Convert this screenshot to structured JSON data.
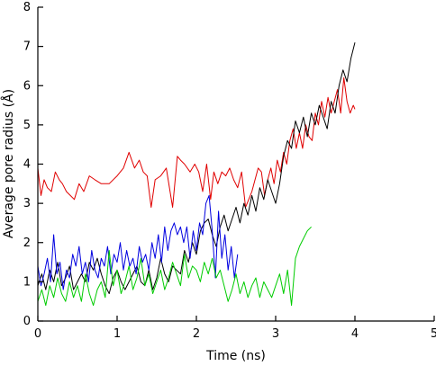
{
  "chart_data": {
    "type": "line",
    "xlabel": "Time (ns)",
    "ylabel": "Average pore radius (Å)",
    "xlim": [
      0,
      5
    ],
    "ylim": [
      0,
      8
    ],
    "x_ticks": [
      "0",
      "1",
      "2",
      "3",
      "4",
      "5"
    ],
    "y_ticks": [
      "0",
      "1",
      "2",
      "3",
      "4",
      "5",
      "6",
      "7",
      "8"
    ],
    "grid": false,
    "legend": "none",
    "series": [
      {
        "color": "#e00000",
        "x": [
          0.0,
          0.04,
          0.08,
          0.12,
          0.17,
          0.22,
          0.27,
          0.31,
          0.36,
          0.41,
          0.46,
          0.52,
          0.58,
          0.65,
          0.72,
          0.8,
          0.9,
          1.0,
          1.08,
          1.15,
          1.22,
          1.28,
          1.33,
          1.38,
          1.43,
          1.48,
          1.55,
          1.62,
          1.7,
          1.76,
          1.8,
          1.85,
          1.92,
          1.98,
          2.03,
          2.08,
          2.13,
          2.18,
          2.22,
          2.27,
          2.32,
          2.37,
          2.42,
          2.47,
          2.52,
          2.57,
          2.62,
          2.66,
          2.7,
          2.74,
          2.78,
          2.82,
          2.86,
          2.9,
          2.94,
          2.98,
          3.02,
          3.06,
          3.1,
          3.14,
          3.18,
          3.22,
          3.26,
          3.3,
          3.34,
          3.38,
          3.42,
          3.46,
          3.5,
          3.54,
          3.58,
          3.62,
          3.66,
          3.7,
          3.74,
          3.78,
          3.82,
          3.86,
          3.9,
          3.94,
          3.98,
          4.0
        ],
        "values": [
          3.9,
          3.2,
          3.6,
          3.4,
          3.3,
          3.8,
          3.6,
          3.5,
          3.3,
          3.2,
          3.1,
          3.5,
          3.3,
          3.7,
          3.6,
          3.5,
          3.5,
          3.7,
          3.9,
          4.3,
          3.9,
          4.1,
          3.8,
          3.7,
          2.9,
          3.6,
          3.7,
          3.9,
          2.9,
          4.2,
          4.1,
          4.0,
          3.8,
          4.0,
          3.8,
          3.3,
          4.0,
          3.1,
          3.8,
          3.5,
          3.8,
          3.7,
          3.9,
          3.6,
          3.4,
          3.8,
          2.9,
          3.1,
          3.3,
          3.6,
          3.9,
          3.8,
          3.2,
          3.6,
          3.9,
          3.5,
          4.1,
          3.8,
          4.3,
          4.0,
          4.6,
          4.9,
          4.4,
          4.8,
          4.4,
          5.0,
          4.7,
          4.6,
          5.3,
          5.0,
          5.6,
          5.2,
          5.7,
          5.3,
          5.6,
          5.9,
          5.3,
          6.2,
          5.6,
          5.3,
          5.5,
          5.4
        ]
      },
      {
        "color": "#000000",
        "x": [
          0.0,
          0.05,
          0.1,
          0.15,
          0.2,
          0.25,
          0.3,
          0.35,
          0.4,
          0.45,
          0.5,
          0.55,
          0.6,
          0.65,
          0.7,
          0.75,
          0.8,
          0.85,
          0.9,
          0.95,
          1.0,
          1.05,
          1.1,
          1.15,
          1.2,
          1.25,
          1.3,
          1.35,
          1.4,
          1.45,
          1.5,
          1.55,
          1.6,
          1.65,
          1.7,
          1.75,
          1.8,
          1.85,
          1.9,
          1.95,
          2.0,
          2.05,
          2.1,
          2.15,
          2.2,
          2.25,
          2.3,
          2.35,
          2.4,
          2.45,
          2.5,
          2.55,
          2.6,
          2.65,
          2.7,
          2.75,
          2.8,
          2.85,
          2.9,
          2.95,
          3.0,
          3.05,
          3.1,
          3.15,
          3.2,
          3.25,
          3.3,
          3.35,
          3.4,
          3.45,
          3.5,
          3.55,
          3.6,
          3.65,
          3.7,
          3.75,
          3.8,
          3.85,
          3.9,
          3.95,
          4.0
        ],
        "values": [
          0.9,
          1.2,
          0.8,
          1.3,
          1.0,
          1.5,
          0.9,
          1.1,
          1.4,
          0.8,
          1.0,
          1.2,
          1.0,
          1.5,
          1.3,
          1.6,
          1.2,
          0.9,
          0.7,
          1.1,
          1.3,
          1.0,
          0.8,
          1.0,
          1.2,
          1.4,
          1.0,
          0.9,
          1.3,
          0.8,
          1.1,
          1.6,
          1.2,
          1.0,
          1.4,
          1.3,
          1.2,
          1.8,
          1.5,
          2.0,
          1.7,
          2.3,
          2.5,
          2.6,
          2.2,
          1.9,
          2.4,
          2.7,
          2.3,
          2.6,
          2.9,
          2.5,
          3.0,
          2.7,
          3.2,
          2.8,
          3.4,
          3.1,
          3.6,
          3.3,
          3.0,
          3.5,
          4.2,
          4.6,
          4.4,
          5.1,
          4.8,
          5.2,
          4.7,
          5.3,
          5.0,
          5.5,
          5.2,
          4.9,
          5.6,
          5.3,
          6.0,
          6.4,
          6.1,
          6.7,
          7.1
        ]
      },
      {
        "color": "#0000e0",
        "x": [
          0.0,
          0.04,
          0.08,
          0.12,
          0.16,
          0.2,
          0.24,
          0.28,
          0.32,
          0.36,
          0.4,
          0.44,
          0.48,
          0.52,
          0.56,
          0.6,
          0.64,
          0.68,
          0.72,
          0.76,
          0.8,
          0.84,
          0.88,
          0.92,
          0.96,
          1.0,
          1.04,
          1.08,
          1.12,
          1.16,
          1.2,
          1.24,
          1.28,
          1.32,
          1.36,
          1.4,
          1.44,
          1.48,
          1.52,
          1.56,
          1.6,
          1.64,
          1.68,
          1.72,
          1.76,
          1.8,
          1.84,
          1.88,
          1.92,
          1.96,
          2.0,
          2.04,
          2.08,
          2.12,
          2.16,
          2.2,
          2.24,
          2.28,
          2.32,
          2.36,
          2.4,
          2.44,
          2.48,
          2.52
        ],
        "values": [
          1.4,
          0.9,
          1.2,
          1.6,
          1.0,
          2.2,
          1.2,
          1.5,
          0.8,
          1.3,
          1.1,
          1.7,
          1.4,
          1.9,
          1.2,
          1.5,
          1.0,
          1.8,
          1.3,
          1.1,
          1.6,
          1.4,
          1.9,
          1.2,
          1.7,
          1.5,
          2.0,
          1.3,
          1.8,
          1.4,
          1.6,
          1.2,
          1.9,
          1.5,
          1.7,
          1.3,
          2.0,
          1.6,
          2.2,
          1.5,
          2.4,
          1.8,
          2.3,
          2.5,
          2.2,
          2.4,
          2.0,
          2.4,
          1.6,
          2.3,
          1.8,
          2.5,
          2.2,
          3.0,
          3.2,
          2.3,
          1.1,
          2.8,
          1.6,
          2.2,
          1.3,
          1.9,
          1.1,
          1.7
        ]
      },
      {
        "color": "#00cc00",
        "x": [
          0.0,
          0.05,
          0.1,
          0.15,
          0.2,
          0.25,
          0.3,
          0.35,
          0.4,
          0.45,
          0.5,
          0.55,
          0.6,
          0.65,
          0.7,
          0.75,
          0.8,
          0.85,
          0.9,
          0.95,
          1.0,
          1.05,
          1.1,
          1.15,
          1.2,
          1.25,
          1.3,
          1.35,
          1.4,
          1.45,
          1.5,
          1.55,
          1.6,
          1.65,
          1.7,
          1.75,
          1.8,
          1.85,
          1.9,
          1.95,
          2.0,
          2.05,
          2.1,
          2.15,
          2.2,
          2.25,
          2.3,
          2.35,
          2.4,
          2.45,
          2.5,
          2.55,
          2.6,
          2.65,
          2.7,
          2.75,
          2.8,
          2.85,
          2.9,
          2.95,
          3.0,
          3.05,
          3.1,
          3.15,
          3.2,
          3.25,
          3.3,
          3.35,
          3.4,
          3.45
        ],
        "values": [
          0.5,
          0.8,
          0.4,
          0.9,
          0.6,
          1.1,
          0.7,
          0.5,
          1.0,
          0.6,
          0.9,
          0.5,
          1.2,
          0.7,
          0.4,
          0.8,
          1.0,
          0.6,
          1.8,
          0.9,
          1.3,
          0.7,
          1.0,
          1.4,
          0.8,
          1.1,
          1.6,
          0.9,
          1.2,
          0.7,
          1.0,
          1.3,
          0.8,
          1.1,
          1.5,
          1.2,
          0.9,
          1.7,
          1.1,
          1.4,
          1.3,
          1.0,
          1.5,
          1.2,
          1.6,
          1.1,
          1.3,
          0.9,
          0.5,
          0.8,
          1.2,
          0.7,
          1.0,
          0.6,
          0.9,
          1.1,
          0.6,
          1.0,
          0.8,
          0.6,
          0.9,
          1.2,
          0.7,
          1.3,
          0.4,
          1.6,
          1.9,
          2.1,
          2.3,
          2.4
        ]
      }
    ]
  }
}
